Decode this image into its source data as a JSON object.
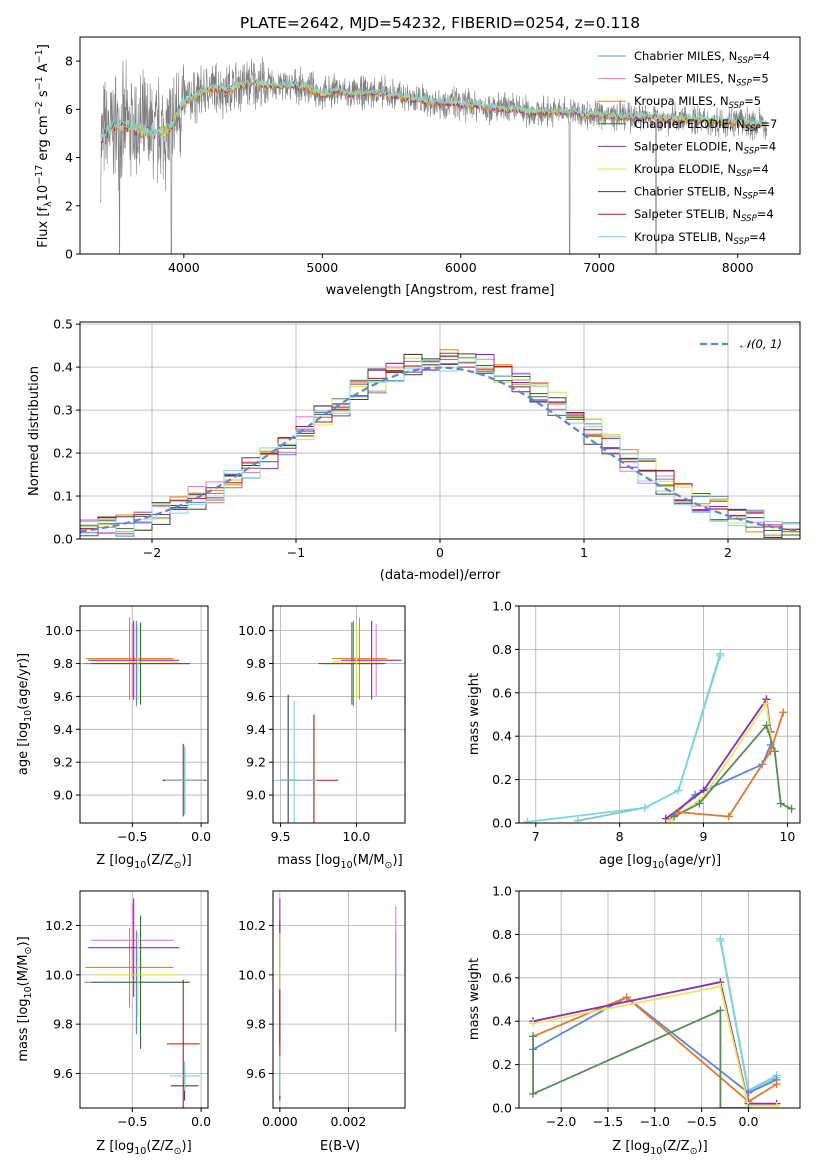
{
  "title": "PLATE=2642, MJD=54232, FIBERID=0254, z=0.118",
  "colors": {
    "Chabrier MILES": "#5b87d6",
    "Salpeter MILES": "#e879d8",
    "Kroupa MILES": "#e08a1e",
    "Chabrier ELODIE": "#3c6e3c",
    "Salpeter ELODIE": "#8b2db0",
    "Kroupa ELODIE": "#d8e050",
    "Chabrier STELIB": "#404040",
    "Salpeter STELIB": "#b01a1a",
    "Kroupa STELIB": "#7fd6d6",
    "Chabrier MILES line": "#5b87d6",
    "Kroupa MILES line": "#e07a30",
    "Chabrier ELODIE line": "#5a8a5a",
    "Kroupa ELODIE line": "#e8e860",
    "Salpeter ELODIE line": "#8b2db0",
    "Chabrier STELIB line": "#7fc8d6",
    "normal": "#5b87d6"
  },
  "chart_data": [
    {
      "id": "spectrum",
      "type": "line",
      "xlabel": "wavelength [Angstrom, rest frame]",
      "ylabel_parts": [
        "Flux [f",
        "λ",
        "10",
        "−17",
        " erg cm",
        "−2",
        " s",
        "−1",
        " A",
        "−1",
        "]"
      ],
      "xlim": [
        3250,
        8450
      ],
      "ylim": [
        0,
        9
      ],
      "xticks": [
        4000,
        5000,
        6000,
        7000,
        8000
      ],
      "yticks": [
        0,
        2,
        4,
        6,
        8
      ],
      "series_note": "observed spectrum (grey) with 9 overlapping SSP model fits",
      "anchors": [
        [
          3400,
          4.8
        ],
        [
          3500,
          5.3
        ],
        [
          3600,
          5.3
        ],
        [
          3700,
          5.1
        ],
        [
          3800,
          5.0
        ],
        [
          3900,
          5.2
        ],
        [
          4000,
          6.3
        ],
        [
          4100,
          6.6
        ],
        [
          4200,
          6.9
        ],
        [
          4300,
          6.8
        ],
        [
          4400,
          7.0
        ],
        [
          4500,
          7.1
        ],
        [
          4600,
          7.0
        ],
        [
          4700,
          7.0
        ],
        [
          4800,
          7.0
        ],
        [
          4900,
          6.9
        ],
        [
          5000,
          6.6
        ],
        [
          5100,
          6.8
        ],
        [
          5200,
          6.6
        ],
        [
          5300,
          6.7
        ],
        [
          5400,
          6.7
        ],
        [
          5500,
          6.6
        ],
        [
          5600,
          6.5
        ],
        [
          5700,
          6.4
        ],
        [
          5800,
          6.3
        ],
        [
          5900,
          6.3
        ],
        [
          6000,
          6.2
        ],
        [
          6100,
          6.2
        ],
        [
          6200,
          6.1
        ],
        [
          6300,
          6.0
        ],
        [
          6400,
          6.0
        ],
        [
          6500,
          5.9
        ],
        [
          6600,
          5.9
        ],
        [
          6700,
          5.9
        ],
        [
          6800,
          5.9
        ],
        [
          6900,
          5.8
        ],
        [
          7000,
          5.8
        ],
        [
          7100,
          5.7
        ],
        [
          7200,
          5.7
        ],
        [
          7300,
          5.7
        ],
        [
          7400,
          5.7
        ],
        [
          7500,
          5.6
        ],
        [
          7600,
          5.6
        ],
        [
          7700,
          5.6
        ],
        [
          7800,
          5.5
        ],
        [
          7900,
          5.5
        ],
        [
          8000,
          5.5
        ],
        [
          8100,
          5.4
        ],
        [
          8200,
          5.4
        ]
      ],
      "legend": [
        {
          "name": "Chabrier MILES",
          "n": "4"
        },
        {
          "name": "Salpeter MILES",
          "n": "5"
        },
        {
          "name": "Kroupa MILES",
          "n": "5"
        },
        {
          "name": "Chabrier ELODIE",
          "n": "7"
        },
        {
          "name": "Salpeter ELODIE",
          "n": "4"
        },
        {
          "name": "Kroupa ELODIE",
          "n": "4"
        },
        {
          "name": "Chabrier STELIB",
          "n": "4"
        },
        {
          "name": "Salpeter STELIB",
          "n": "4"
        },
        {
          "name": "Kroupa STELIB",
          "n": "4"
        }
      ],
      "legend_label_prefix": "N",
      "legend_label_sub": "SSP",
      "legend_placement": "right"
    },
    {
      "id": "residuals",
      "type": "step",
      "xlabel": "(data-model)/error",
      "ylabel": "Normed distribution",
      "xlim": [
        -2.5,
        2.5
      ],
      "ylim": [
        0,
        0.505
      ],
      "xticks": [
        -2,
        -1,
        0,
        1,
        2
      ],
      "yticks": [
        0.0,
        0.1,
        0.2,
        0.3,
        0.4,
        0.5
      ],
      "grid": true,
      "bin_width": 0.125,
      "normal_label": "𝒩(0, 1)",
      "legend_placement": "top-right"
    },
    {
      "id": "age_vs_Z",
      "type": "errorbar",
      "xlabel_text": "Z [log",
      "xlabel_rest": "(Z/Z",
      "ylabel": "age  [log10(age/yr)]",
      "xlim": [
        -0.88,
        0.05
      ],
      "ylim": [
        8.83,
        10.15
      ],
      "xticks": [
        -0.5,
        0.0
      ],
      "yticks": [
        9.0,
        9.2,
        9.4,
        9.6,
        9.8,
        10.0
      ],
      "points": [
        {
          "model": "Chabrier MILES",
          "x": -0.47,
          "xerr": 0.38,
          "y": 9.8,
          "yerr": 0.26
        },
        {
          "model": "Salpeter MILES",
          "x": -0.5,
          "xerr": 0.3,
          "y": 9.82,
          "yerr": 0.22
        },
        {
          "model": "Kroupa MILES",
          "x": -0.52,
          "xerr": 0.32,
          "y": 9.83,
          "yerr": 0.25
        },
        {
          "model": "Chabrier ELODIE",
          "x": -0.44,
          "xerr": 0.36,
          "y": 9.8,
          "yerr": 0.25
        },
        {
          "model": "Salpeter ELODIE",
          "x": -0.49,
          "xerr": 0.33,
          "y": 9.82,
          "yerr": 0.24
        },
        {
          "model": "Kroupa ELODIE",
          "x": -0.46,
          "xerr": 0.3,
          "y": 9.81,
          "yerr": 0.23
        },
        {
          "model": "Chabrier STELIB",
          "x": -0.12,
          "xerr": 0.16,
          "y": 9.09,
          "yerr": 0.2
        },
        {
          "model": "Salpeter STELIB",
          "x": -0.13,
          "xerr": 0.15,
          "y": 9.09,
          "yerr": 0.22
        },
        {
          "model": "Kroupa STELIB",
          "x": -0.12,
          "xerr": 0.14,
          "y": 9.09,
          "yerr": 0.21
        }
      ]
    },
    {
      "id": "age_vs_mass",
      "type": "errorbar",
      "xlim": [
        9.45,
        10.32
      ],
      "ylim": [
        8.83,
        10.15
      ],
      "xticks": [
        9.5,
        10.0
      ],
      "yticks": [
        9.0,
        9.2,
        9.4,
        9.6,
        9.8,
        10.0
      ],
      "points": [
        {
          "model": "Chabrier MILES",
          "x": 9.98,
          "xerr": 0.2,
          "y": 9.8,
          "yerr": 0.26
        },
        {
          "model": "Salpeter MILES",
          "x": 10.13,
          "xerr": 0.15,
          "y": 9.82,
          "yerr": 0.22
        },
        {
          "model": "Kroupa MILES",
          "x": 10.02,
          "xerr": 0.18,
          "y": 9.83,
          "yerr": 0.25
        },
        {
          "model": "Chabrier ELODIE",
          "x": 9.97,
          "xerr": 0.22,
          "y": 9.8,
          "yerr": 0.25
        },
        {
          "model": "Salpeter ELODIE",
          "x": 10.1,
          "xerr": 0.2,
          "y": 9.82,
          "yerr": 0.24
        },
        {
          "model": "Kroupa ELODIE",
          "x": 10.0,
          "xerr": 0.16,
          "y": 9.81,
          "yerr": 0.23
        },
        {
          "model": "Chabrier STELIB",
          "x": 9.55,
          "xerr": 0.05,
          "y": 9.09,
          "yerr": 0.52
        },
        {
          "model": "Salpeter STELIB",
          "x": 9.72,
          "xerr": 0.16,
          "y": 9.09,
          "yerr": 0.4
        },
        {
          "model": "Kroupa STELIB",
          "x": 9.59,
          "xerr": 0.15,
          "y": 9.09,
          "yerr": 0.48
        }
      ]
    },
    {
      "id": "weight_vs_age",
      "type": "line",
      "xlabel_text": "age  [log",
      "xlabel_rest": "(age/yr)]",
      "ylabel": "mass weight",
      "xlim": [
        6.8,
        10.15
      ],
      "ylim": [
        0,
        1.0
      ],
      "xticks": [
        7,
        8,
        9,
        10
      ],
      "yticks": [
        0.0,
        0.2,
        0.4,
        0.6,
        0.8,
        1.0
      ],
      "grid": true,
      "series": [
        {
          "model": "Chabrier STELIB line",
          "x": [
            7.5,
            8.3,
            8.7,
            9.2
          ],
          "y": [
            0.01,
            0.07,
            0.15,
            0.78
          ]
        },
        {
          "model": "Kroupa STELIB",
          "x": [
            6.9,
            8.3,
            8.7,
            9.2
          ],
          "y": [
            0.005,
            0.07,
            0.15,
            0.77
          ]
        },
        {
          "model": "Chabrier MILES line",
          "x": [
            8.6,
            8.9,
            9.7,
            9.8
          ],
          "y": [
            0.02,
            0.13,
            0.27,
            0.36
          ]
        },
        {
          "model": "Salpeter ELODIE line",
          "x": [
            8.55,
            9.0,
            9.75,
            9.8
          ],
          "y": [
            0.02,
            0.15,
            0.57,
            0.42
          ]
        },
        {
          "model": "Kroupa ELODIE line",
          "x": [
            8.6,
            9.0,
            9.75,
            9.8
          ],
          "y": [
            0.01,
            0.12,
            0.55,
            0.4
          ]
        },
        {
          "model": "Chabrier ELODIE line",
          "x": [
            8.65,
            8.95,
            9.75,
            9.85,
            9.92,
            10.05
          ],
          "y": [
            0.03,
            0.09,
            0.45,
            0.33,
            0.09,
            0.065
          ]
        },
        {
          "model": "Kroupa MILES line",
          "x": [
            8.7,
            9.3,
            9.8,
            9.95
          ],
          "y": [
            0.05,
            0.03,
            0.33,
            0.51
          ]
        }
      ]
    },
    {
      "id": "mass_vs_Z",
      "type": "errorbar",
      "ylabel": "mass [log10(M/M⊙)]",
      "xlim": [
        -0.88,
        0.05
      ],
      "ylim": [
        9.46,
        10.34
      ],
      "xticks": [
        -0.5,
        0.0
      ],
      "yticks": [
        9.6,
        9.8,
        10.0,
        10.2
      ],
      "points": [
        {
          "model": "Chabrier MILES",
          "x": -0.47,
          "xerr": 0.38,
          "y": 9.97,
          "yerr": 0.21
        },
        {
          "model": "Salpeter MILES",
          "x": -0.5,
          "xerr": 0.3,
          "y": 10.14,
          "yerr": 0.15
        },
        {
          "model": "Kroupa MILES",
          "x": -0.52,
          "xerr": 0.32,
          "y": 10.03,
          "yerr": 0.16
        },
        {
          "model": "Chabrier ELODIE",
          "x": -0.44,
          "xerr": 0.36,
          "y": 9.97,
          "yerr": 0.27
        },
        {
          "model": "Salpeter ELODIE",
          "x": -0.49,
          "xerr": 0.33,
          "y": 10.11,
          "yerr": 0.2
        },
        {
          "model": "Kroupa ELODIE",
          "x": -0.46,
          "xerr": 0.3,
          "y": 10.0,
          "yerr": 0.17
        },
        {
          "model": "Chabrier STELIB",
          "x": -0.12,
          "xerr": 0.1,
          "y": 9.55,
          "yerr": 0.06
        },
        {
          "model": "Salpeter STELIB",
          "x": -0.13,
          "xerr": 0.12,
          "y": 9.72,
          "yerr": 0.26
        },
        {
          "model": "Kroupa STELIB",
          "x": -0.12,
          "xerr": 0.11,
          "y": 9.59,
          "yerr": 0.06
        }
      ]
    },
    {
      "id": "mass_vs_EBV",
      "type": "errorbar",
      "xlabel": "E(B-V)",
      "xlim": [
        -0.0002,
        0.00365
      ],
      "ylim": [
        9.46,
        10.34
      ],
      "xticks": [
        0.0,
        0.002
      ],
      "xtick_labels": [
        "0.000",
        "0.002"
      ],
      "yticks": [
        9.6,
        9.8,
        10.0,
        10.2
      ],
      "points": [
        {
          "model": "Chabrier MILES",
          "x": 0.00338,
          "y": 9.97,
          "yerr": 0.2
        },
        {
          "model": "Salpeter MILES",
          "x": 0.00338,
          "y": 10.14,
          "yerr": 0.14
        },
        {
          "model": "Kroupa MILES",
          "x": 0.0,
          "y": 10.03,
          "yerr": 0.18
        },
        {
          "model": "Chabrier ELODIE",
          "x": 0.0,
          "y": 9.97,
          "yerr": 0.25
        },
        {
          "model": "Salpeter ELODIE",
          "x": 0.0,
          "y": 10.11,
          "yerr": 0.2
        },
        {
          "model": "Kroupa ELODIE",
          "x": 0.0,
          "y": 10.0,
          "yerr": 0.17
        },
        {
          "model": "Chabrier STELIB",
          "x": 0.0,
          "y": 9.55,
          "yerr": 0.06
        },
        {
          "model": "Salpeter STELIB",
          "x": 0.0,
          "y": 9.72,
          "yerr": 0.22
        },
        {
          "model": "Kroupa STELIB",
          "x": 0.0,
          "y": 9.59,
          "yerr": 0.08
        }
      ]
    },
    {
      "id": "weight_vs_Z",
      "type": "line",
      "ylabel": "mass weight",
      "xlim": [
        -2.45,
        0.55
      ],
      "ylim": [
        0,
        1.0
      ],
      "xticks": [
        -2.0,
        -1.5,
        -1.0,
        -0.5,
        0.0
      ],
      "xtick_labels": [
        "−2.0",
        "−1.5",
        "−1.0",
        "−0.5",
        "0.0"
      ],
      "yticks": [
        0.0,
        0.2,
        0.4,
        0.6,
        0.8,
        1.0
      ],
      "grid": true,
      "series": [
        {
          "model": "Chabrier STELIB line",
          "x": [
            -0.3,
            0.0,
            0.3
          ],
          "y": [
            0.78,
            0.08,
            0.15
          ]
        },
        {
          "model": "Kroupa STELIB",
          "x": [
            -0.3,
            0.0,
            0.3
          ],
          "y": [
            0.77,
            0.07,
            0.14
          ]
        },
        {
          "model": "Chabrier MILES line",
          "x": [
            -2.3,
            -1.3,
            0.0,
            0.3
          ],
          "y": [
            0.27,
            0.51,
            0.07,
            0.13
          ]
        },
        {
          "model": "Kroupa MILES line",
          "x": [
            -2.3,
            -1.3,
            0.0,
            0.3
          ],
          "y": [
            0.33,
            0.51,
            0.03,
            0.11
          ]
        },
        {
          "model": "Salpeter ELODIE line",
          "x": [
            -2.3,
            -0.3,
            0.0,
            0.3
          ],
          "y": [
            0.4,
            0.58,
            0.02,
            0.02
          ]
        },
        {
          "model": "Kroupa ELODIE line",
          "x": [
            -2.3,
            -0.3,
            0.0,
            0.3
          ],
          "y": [
            0.39,
            0.56,
            0.01,
            0.01
          ]
        },
        {
          "model": "Chabrier ELODIE line",
          "x": [
            -2.3,
            -2.3,
            -0.3,
            -0.3,
            0.0
          ],
          "y": [
            0.33,
            0.065,
            0.45,
            0.0,
            0.0
          ]
        }
      ]
    }
  ],
  "axis_labels": {
    "age_ylabel_pre": "age  [log",
    "age_ylabel_post": "(age/yr)]",
    "mass_ylabel_pre": "mass [log",
    "mass_ylabel_post": "(M/M",
    "z_xlabel_pre": "Z [log",
    "z_xlabel_post": "(Z/Z",
    "mass_xlabel_pre": "mass [log",
    "mass_xlabel_post": "(M/M",
    "sub10": "10",
    "sun": "⊙",
    "close": ")]"
  }
}
